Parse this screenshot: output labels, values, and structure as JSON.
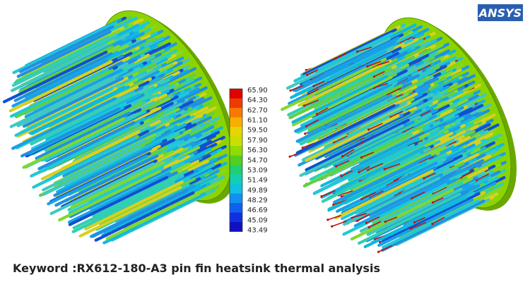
{
  "logo": "ANSYS",
  "legend": {
    "labels": [
      "65.90",
      "64.30",
      "62.70",
      "61.10",
      "59.50",
      "57.90",
      "56.30",
      "54.70",
      "53.09",
      "51.49",
      "49.89",
      "48.29",
      "46.69",
      "45.09",
      "43.49"
    ],
    "colors": [
      "#e00000",
      "#f03a00",
      "#f77a00",
      "#f5b000",
      "#e8d400",
      "#c8e000",
      "#90dc00",
      "#50d020",
      "#20d070",
      "#10d0b0",
      "#10c0e0",
      "#1090f0",
      "#1060f0",
      "#1030e0",
      "#1010c0"
    ]
  },
  "caption": "Keyword :RX612-180-A3 pin fin heatsink thermal analysis"
}
